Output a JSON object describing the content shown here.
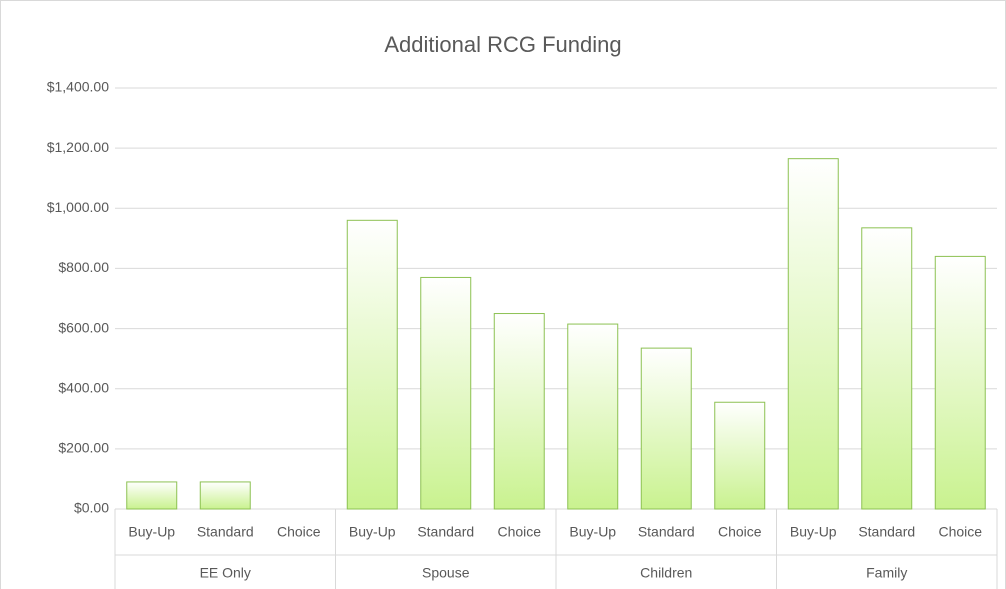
{
  "chart_data": {
    "type": "bar",
    "title": "Additional RCG Funding",
    "groups": [
      {
        "name": "EE Only",
        "categories": [
          "Buy-Up",
          "Standard",
          "Choice"
        ],
        "values": [
          90,
          90,
          0
        ]
      },
      {
        "name": "Spouse",
        "categories": [
          "Buy-Up",
          "Standard",
          "Choice"
        ],
        "values": [
          960,
          770,
          650
        ]
      },
      {
        "name": "Children",
        "categories": [
          "Buy-Up",
          "Standard",
          "Choice"
        ],
        "values": [
          615,
          535,
          355
        ]
      },
      {
        "name": "Family",
        "categories": [
          "Buy-Up",
          "Standard",
          "Choice"
        ],
        "values": [
          1165,
          935,
          840
        ]
      }
    ],
    "color": "#c9f28f",
    "border_color": "#8cc152",
    "ylim": [
      0,
      1400
    ],
    "yticks": [
      {
        "value": 0,
        "label": "$0.00"
      },
      {
        "value": 200,
        "label": "$200.00"
      },
      {
        "value": 400,
        "label": "$400.00"
      },
      {
        "value": 600,
        "label": "$600.00"
      },
      {
        "value": 800,
        "label": "$800.00"
      },
      {
        "value": 1000,
        "label": "$1,000.00"
      },
      {
        "value": 1200,
        "label": "$1,200.00"
      },
      {
        "value": 1400,
        "label": "$1,400.00"
      }
    ],
    "grid": true
  }
}
